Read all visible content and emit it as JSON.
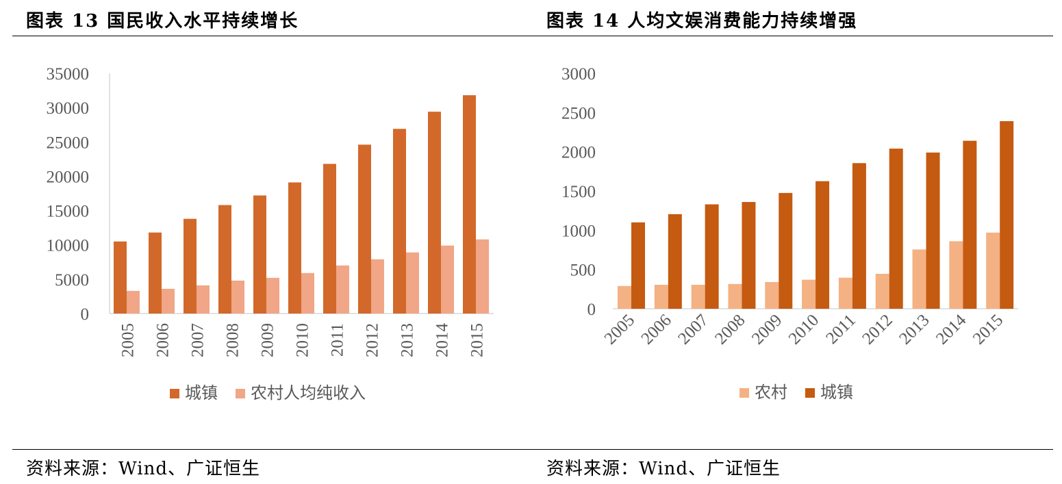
{
  "left": {
    "title": "图表 13 国民收入水平持续增长",
    "source": "资料来源：Wind、广证恒生"
  },
  "right": {
    "title": "图表 14 人均文娱消费能力持续增强",
    "source": "资料来源：Wind、广证恒生"
  },
  "colors": {
    "urban_left": "#d2692a",
    "rural_left": "#f0a687",
    "urban_right": "#c55a11",
    "rural_right": "#f4b183",
    "axis": "#d9d9d9"
  },
  "chart_data": [
    {
      "type": "bar",
      "categories": [
        "2005",
        "2006",
        "2007",
        "2008",
        "2009",
        "2010",
        "2011",
        "2012",
        "2013",
        "2014",
        "2015"
      ],
      "series": [
        {
          "name": "城镇",
          "values": [
            10500,
            11800,
            13800,
            15800,
            17200,
            19100,
            21800,
            24600,
            26900,
            29400,
            31800
          ]
        },
        {
          "name": "农村人均纯收入",
          "values": [
            3300,
            3600,
            4100,
            4800,
            5200,
            5900,
            7000,
            7900,
            8900,
            9900,
            10800
          ]
        }
      ],
      "ylim": [
        0,
        35000
      ],
      "yticks": [
        0,
        5000,
        10000,
        15000,
        20000,
        25000,
        30000,
        35000
      ],
      "x_tick_rotation": "vertical",
      "legend": "bottom",
      "grid": false
    },
    {
      "type": "bar",
      "categories": [
        "2005",
        "2006",
        "2007",
        "2008",
        "2009",
        "2010",
        "2011",
        "2012",
        "2013",
        "2014",
        "2015"
      ],
      "series": [
        {
          "name": "农村",
          "values": [
            290,
            305,
            305,
            315,
            340,
            370,
            395,
            445,
            755,
            860,
            970
          ]
        },
        {
          "name": "城镇",
          "values": [
            1100,
            1205,
            1330,
            1360,
            1475,
            1625,
            1855,
            2040,
            1990,
            2140,
            2390
          ]
        }
      ],
      "ylim": [
        0,
        3000
      ],
      "yticks": [
        0,
        500,
        1000,
        1500,
        2000,
        2500,
        3000
      ],
      "x_tick_rotation": "diagonal",
      "legend": "bottom",
      "grid": false
    }
  ]
}
